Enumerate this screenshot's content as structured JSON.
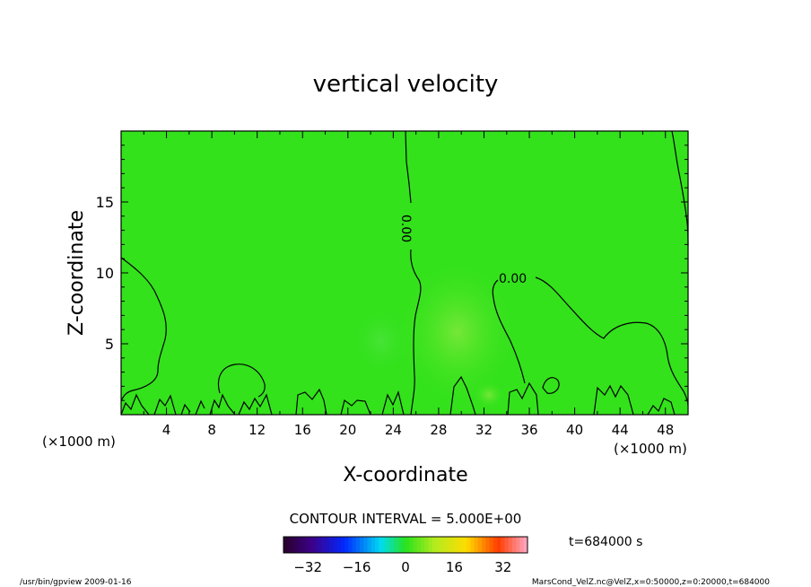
{
  "chart_data": {
    "type": "heatmap",
    "title": "vertical velocity",
    "xlabel": "X-coordinate",
    "ylabel": "Z-coordinate",
    "x_unit": "(×1000 m)",
    "z_unit": "(×1000 m)",
    "xlim": [
      0,
      50
    ],
    "ylim": [
      0,
      20
    ],
    "x_ticks": [
      4,
      8,
      12,
      16,
      20,
      24,
      28,
      32,
      36,
      40,
      44,
      48
    ],
    "y_ticks": [
      5,
      10,
      15
    ],
    "contour_interval": "CONTOUR INTERVAL = 5.000E+00",
    "contour_labels": [
      "0.00",
      "0.00"
    ],
    "colorbar": {
      "min": -40,
      "max": 40,
      "ticks": [
        -32,
        -16,
        0,
        16,
        32
      ]
    },
    "time_label": "t=684000 s"
  },
  "footer": {
    "left": "/usr/bin/gpview  2009-01-16",
    "right": "MarsCond_VelZ.nc@VelZ,x=0:50000,z=0:20000,t=684000"
  }
}
